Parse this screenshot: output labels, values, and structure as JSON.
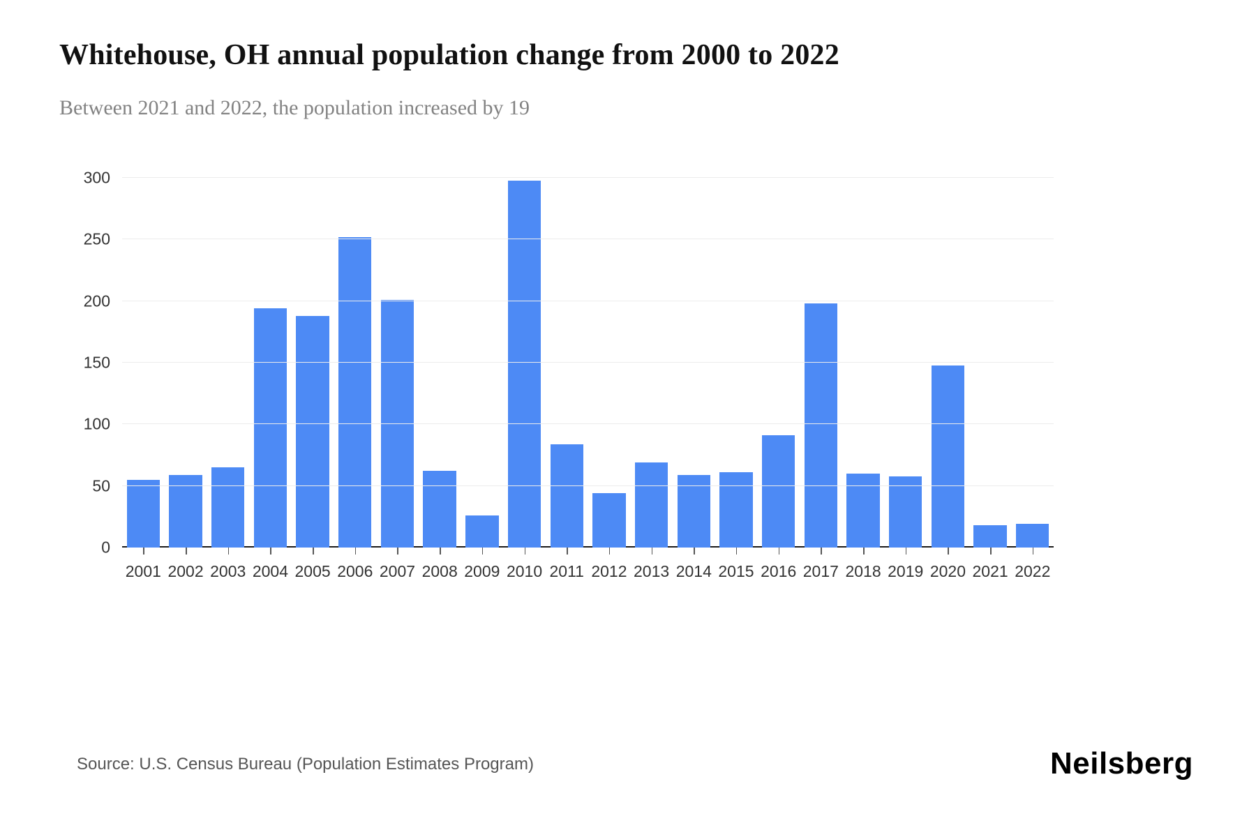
{
  "header": {
    "title": "Whitehouse, OH annual population change from 2000 to 2022",
    "subtitle": "Between 2021 and 2022, the population increased by 19"
  },
  "footer": {
    "source": "Source: U.S. Census Bureau (Population Estimates Program)",
    "brand": "Neilsberg"
  },
  "chart_data": {
    "type": "bar",
    "title": "Whitehouse, OH annual population change from 2000 to 2022",
    "subtitle": "Between 2021 and 2022, the population increased by 19",
    "categories": [
      "2001",
      "2002",
      "2003",
      "2004",
      "2005",
      "2006",
      "2007",
      "2008",
      "2009",
      "2010",
      "2011",
      "2012",
      "2013",
      "2014",
      "2015",
      "2016",
      "2017",
      "2018",
      "2019",
      "2020",
      "2021",
      "2022"
    ],
    "values": [
      55,
      59,
      65,
      194,
      188,
      252,
      201,
      62,
      26,
      298,
      84,
      44,
      69,
      59,
      61,
      91,
      198,
      60,
      58,
      148,
      18,
      19
    ],
    "xlabel": "",
    "ylabel": "",
    "ylim": [
      0,
      300
    ],
    "yticks": [
      0,
      50,
      100,
      150,
      200,
      250,
      300
    ],
    "grid": "horizontal",
    "legend_position": "none",
    "bar_color": "#4d8af5"
  }
}
